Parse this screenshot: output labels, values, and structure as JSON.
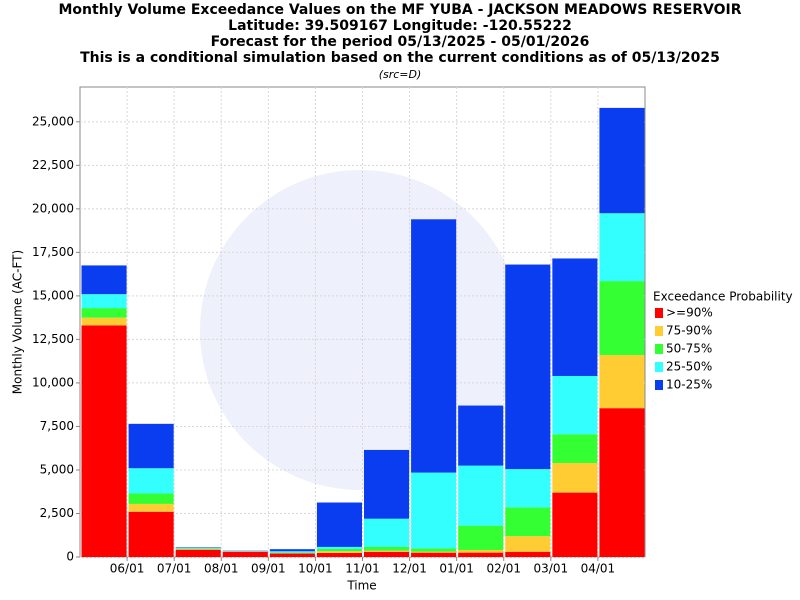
{
  "chart_data": {
    "type": "stacked_bar",
    "title": [
      "Monthly Volume Exceedance Values on the MF YUBA - JACKSON MEADOWS RESERVOIR",
      "Latitude: 39.509167 Longitude: -120.55222",
      "Forecast for the period 05/13/2025 - 05/01/2026",
      "This is a conditional simulation based on the current conditions as of 05/13/2025"
    ],
    "subtitle": "(src=D)",
    "xlabel": "Time",
    "ylabel": "Monthly Volume (AC-FT)",
    "legend_title": "Exceedance Probability",
    "legend": "right",
    "categories": [
      null,
      null,
      null,
      null,
      null,
      null,
      null,
      null,
      null,
      null,
      null,
      null
    ],
    "xticks": [
      "06/01",
      "07/01",
      "08/01",
      "09/01",
      "10/01",
      "11/01",
      "12/01",
      "01/01",
      "02/01",
      "03/01",
      "04/01"
    ],
    "ylim": [
      0,
      27000
    ],
    "yticks": [
      0,
      {
        "value": 2500,
        "label": "2,500"
      },
      {
        "value": 5000,
        "label": "5,000"
      },
      {
        "value": 7500,
        "label": "7,500"
      },
      {
        "value": 10000,
        "label": "10,000"
      },
      {
        "value": 12500,
        "label": "12,500"
      },
      {
        "value": 15000,
        "label": "15,000"
      },
      {
        "value": 17500,
        "label": "17,500"
      },
      {
        "value": 20000,
        "label": "20,000"
      },
      {
        "value": 22500,
        "label": "22,500"
      },
      {
        "value": 25000,
        "label": "25,000"
      }
    ],
    "grid": true,
    "series": [
      {
        "name": ">=90%",
        "color": "#ff0000",
        "values": [
          13300,
          2600,
          420,
          300,
          200,
          230,
          300,
          250,
          250,
          300,
          3700,
          8550
        ]
      },
      {
        "name": "75-90%",
        "color": "#ffcc33",
        "values": [
          450,
          450,
          30,
          10,
          20,
          100,
          60,
          50,
          150,
          900,
          1700,
          3050
        ]
      },
      {
        "name": "50-75%",
        "color": "#33ff33",
        "values": [
          550,
          600,
          30,
          10,
          30,
          130,
          220,
          200,
          1400,
          1650,
          1650,
          4250
        ]
      },
      {
        "name": "25-50%",
        "color": "#33ffff",
        "values": [
          800,
          1450,
          50,
          20,
          80,
          120,
          1620,
          4350,
          3450,
          2200,
          3350,
          3900
        ]
      },
      {
        "name": "10-25%",
        "color": "#0a3cf0",
        "values": [
          1650,
          2550,
          30,
          20,
          120,
          2550,
          3950,
          14550,
          3450,
          11750,
          6750,
          6050
        ]
      }
    ]
  }
}
